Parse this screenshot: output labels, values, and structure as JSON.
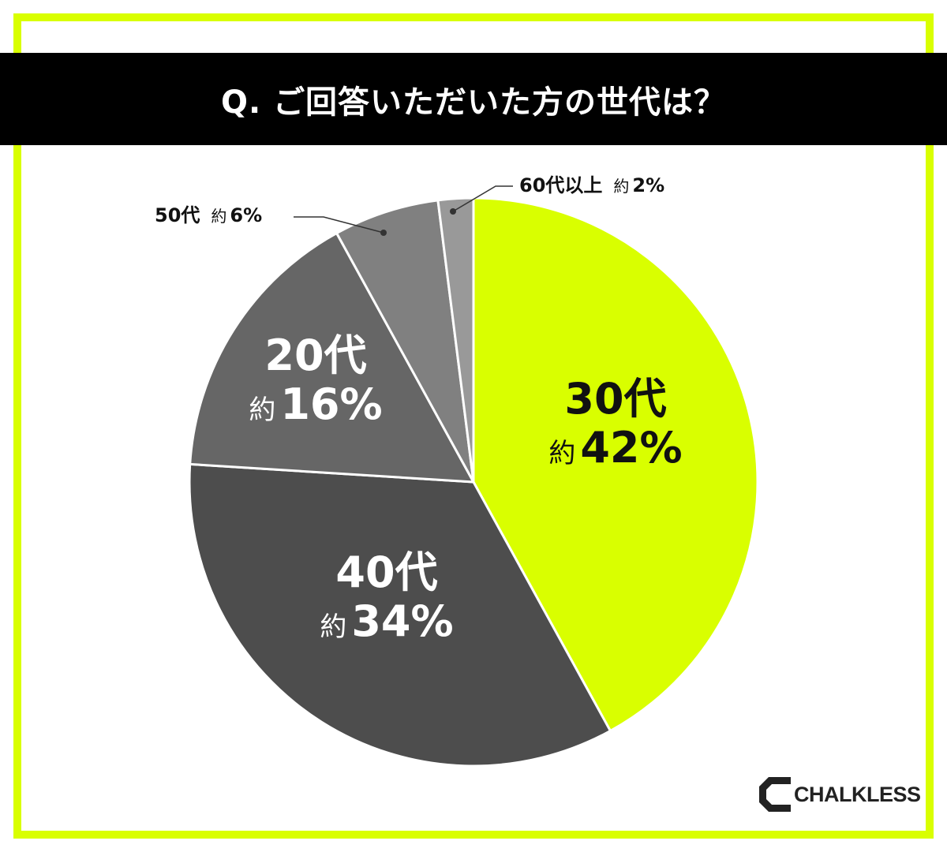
{
  "header": {
    "title": "Q. ご回答いただいた方の世代は？"
  },
  "colors": {
    "accent": "#d9ff00",
    "frame": "#d9ff00",
    "title_bg": "#000000"
  },
  "labels": {
    "s30": {
      "age": "30代",
      "prefix": "約",
      "pct": "42%"
    },
    "s40": {
      "age": "40代",
      "prefix": "約",
      "pct": "34%"
    },
    "s20": {
      "age": "20代",
      "prefix": "約",
      "pct": "16%"
    },
    "s50": {
      "age": "50代",
      "prefix": "約",
      "pct": "6%"
    },
    "s60": {
      "age": "60代以上",
      "prefix": "約",
      "pct": "2%"
    }
  },
  "logo": {
    "text": "CHALKLESS"
  },
  "chart_data": {
    "type": "pie",
    "title": "Q. ご回答いただいた方の世代は？",
    "categories": [
      "30代",
      "40代",
      "20代",
      "50代",
      "60代以上"
    ],
    "values": [
      42,
      34,
      16,
      6,
      2
    ],
    "value_labels": [
      "約42%",
      "約34%",
      "約16%",
      "約6%",
      "約2%"
    ],
    "colors": [
      "#d9ff00",
      "#4d4d4d",
      "#666666",
      "#808080",
      "#999999"
    ],
    "start_angle": "12 o'clock, clockwise",
    "legend": "none (direct labels)"
  }
}
